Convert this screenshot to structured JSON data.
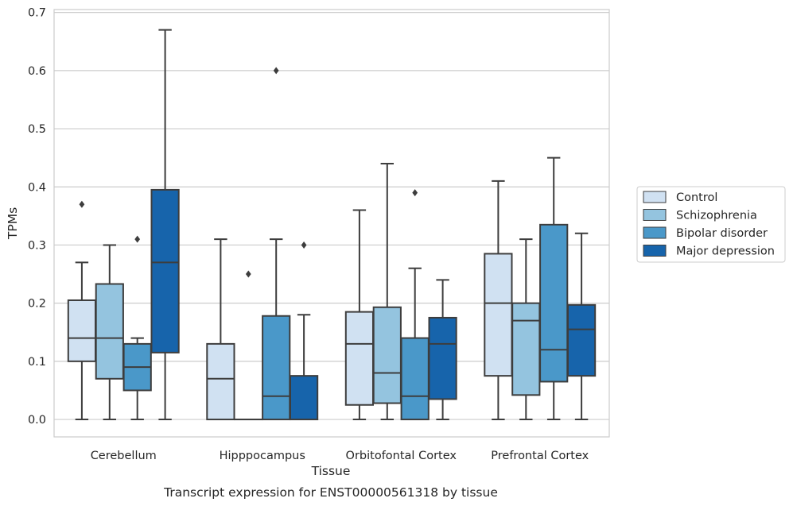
{
  "chart_data": {
    "type": "box",
    "caption": "Transcript expression for ENST00000561318 by tissue",
    "xlabel": "Tissue",
    "ylabel": "TPMs",
    "ylim": [
      -0.03,
      0.705
    ],
    "yticks": [
      "0.0",
      "0.1",
      "0.2",
      "0.3",
      "0.4",
      "0.5",
      "0.6",
      "0.7"
    ],
    "grid": "horizontal",
    "legend_position": "right",
    "categories": [
      "Cerebellum",
      "Hipppocampus",
      "Orbitofontal Cortex",
      "Prefrontal Cortex"
    ],
    "series": [
      {
        "name": "Control",
        "color": "#d0e1f2",
        "boxes": [
          {
            "whisker_low": 0.0,
            "q1": 0.1,
            "median": 0.14,
            "q3": 0.205,
            "whisker_high": 0.27,
            "outliers": [
              0.37
            ]
          },
          {
            "whisker_low": 0.0,
            "q1": 0.0,
            "median": 0.07,
            "q3": 0.13,
            "whisker_high": 0.31,
            "outliers": []
          },
          {
            "whisker_low": 0.0,
            "q1": 0.025,
            "median": 0.13,
            "q3": 0.185,
            "whisker_high": 0.36,
            "outliers": []
          },
          {
            "whisker_low": 0.0,
            "q1": 0.075,
            "median": 0.2,
            "q3": 0.285,
            "whisker_high": 0.41,
            "outliers": []
          }
        ]
      },
      {
        "name": "Schizophrenia",
        "color": "#94c4df",
        "boxes": [
          {
            "whisker_low": 0.0,
            "q1": 0.07,
            "median": 0.14,
            "q3": 0.233,
            "whisker_high": 0.3,
            "outliers": []
          },
          {
            "whisker_low": 0.0,
            "q1": 0.0,
            "median": 0.0,
            "q3": 0.0,
            "whisker_high": 0.0,
            "outliers": [
              0.25
            ]
          },
          {
            "whisker_low": 0.0,
            "q1": 0.028,
            "median": 0.08,
            "q3": 0.193,
            "whisker_high": 0.44,
            "outliers": []
          },
          {
            "whisker_low": 0.0,
            "q1": 0.042,
            "median": 0.17,
            "q3": 0.2,
            "whisker_high": 0.31,
            "outliers": []
          }
        ]
      },
      {
        "name": "Bipolar disorder",
        "color": "#4a98c9",
        "boxes": [
          {
            "whisker_low": 0.0,
            "q1": 0.05,
            "median": 0.09,
            "q3": 0.13,
            "whisker_high": 0.14,
            "outliers": [
              0.31
            ]
          },
          {
            "whisker_low": 0.0,
            "q1": 0.0,
            "median": 0.04,
            "q3": 0.178,
            "whisker_high": 0.31,
            "outliers": [
              0.6
            ]
          },
          {
            "whisker_low": 0.0,
            "q1": 0.0,
            "median": 0.04,
            "q3": 0.14,
            "whisker_high": 0.26,
            "outliers": [
              0.39
            ]
          },
          {
            "whisker_low": 0.0,
            "q1": 0.065,
            "median": 0.12,
            "q3": 0.335,
            "whisker_high": 0.45,
            "outliers": []
          }
        ]
      },
      {
        "name": "Major depression",
        "color": "#1764ab",
        "boxes": [
          {
            "whisker_low": 0.0,
            "q1": 0.115,
            "median": 0.27,
            "q3": 0.395,
            "whisker_high": 0.67,
            "outliers": []
          },
          {
            "whisker_low": 0.0,
            "q1": 0.0,
            "median": 0.0,
            "q3": 0.075,
            "whisker_high": 0.18,
            "outliers": [
              0.3
            ]
          },
          {
            "whisker_low": 0.0,
            "q1": 0.035,
            "median": 0.13,
            "q3": 0.175,
            "whisker_high": 0.24,
            "outliers": []
          },
          {
            "whisker_low": 0.0,
            "q1": 0.075,
            "median": 0.155,
            "q3": 0.197,
            "whisker_high": 0.32,
            "outliers": []
          }
        ]
      }
    ]
  }
}
